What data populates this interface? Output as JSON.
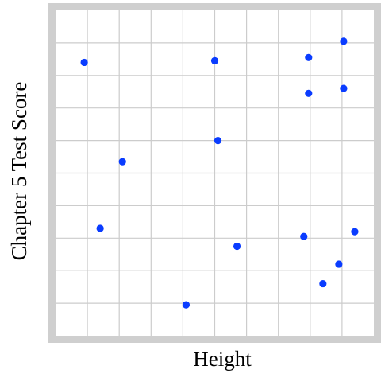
{
  "chart_data": {
    "type": "scatter",
    "title": "",
    "xlabel": "Height",
    "ylabel": "Chapter 5 Test Score",
    "xlim": [
      0,
      10
    ],
    "ylim": [
      0,
      10
    ],
    "grid": true,
    "legend": "none",
    "x": [
      0.9,
      1.4,
      2.1,
      4.1,
      5.0,
      5.1,
      5.7,
      7.8,
      7.95,
      7.95,
      8.4,
      8.9,
      9.05,
      9.05,
      9.4
    ],
    "y": [
      8.4,
      3.3,
      5.35,
      0.95,
      8.45,
      6.0,
      2.75,
      3.05,
      8.55,
      7.45,
      1.6,
      2.2,
      9.05,
      7.6,
      3.2
    ]
  },
  "colors": {
    "point": "#0a3cff",
    "grid": "#cccccc",
    "frame": "#cfcfcf",
    "plot_background": "#ffffff"
  }
}
